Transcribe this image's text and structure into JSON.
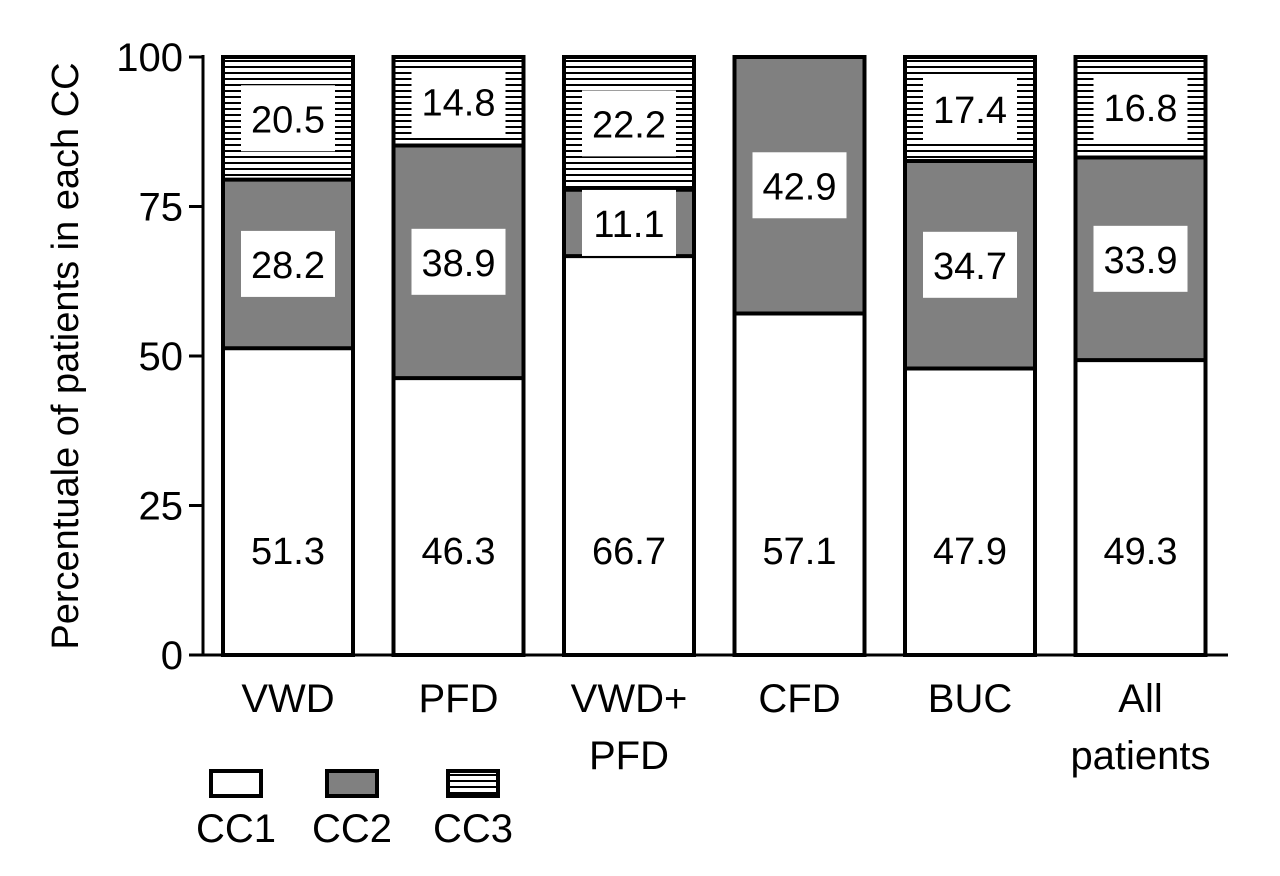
{
  "chart_data": {
    "type": "bar",
    "stacked": true,
    "ylabel": "Percentuale of patients in each CC",
    "xlabel": "",
    "ylim": [
      0,
      100
    ],
    "yticks": [
      0,
      25,
      50,
      75,
      100
    ],
    "categories": [
      [
        "VWD"
      ],
      [
        "PFD"
      ],
      [
        "VWD+",
        "PFD"
      ],
      [
        "CFD"
      ],
      [
        "BUC"
      ],
      [
        "All",
        "patients"
      ]
    ],
    "series": [
      {
        "name": "CC1",
        "values": [
          51.3,
          46.3,
          66.7,
          57.1,
          47.9,
          49.3
        ],
        "labels": [
          "51.3",
          "46.3",
          "66.7",
          "57.1",
          "47.9",
          "49.3"
        ]
      },
      {
        "name": "CC2",
        "values": [
          28.2,
          38.9,
          11.1,
          42.9,
          34.7,
          33.9
        ],
        "labels": [
          "28.2",
          "38.9",
          "11.1",
          "42.9",
          "34.7",
          "33.9"
        ]
      },
      {
        "name": "CC3",
        "values": [
          20.5,
          14.8,
          22.2,
          0,
          17.4,
          16.8
        ],
        "labels": [
          "20.5",
          "14.8",
          "22.2",
          "",
          "17.4",
          "16.8"
        ]
      }
    ],
    "colors": {
      "CC1": "#ffffff",
      "CC2": "#808080",
      "CC3": "hatched-horizontal"
    },
    "grid": false,
    "legend_position": "bottom-left"
  }
}
